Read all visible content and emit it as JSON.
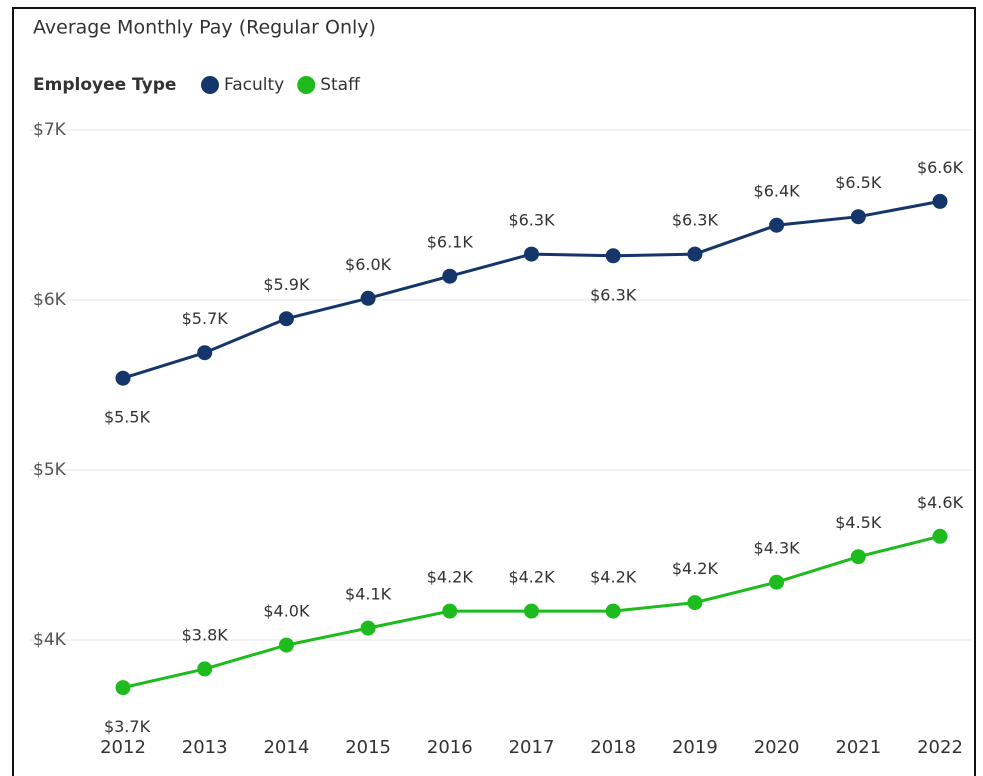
{
  "chart_data": {
    "type": "line",
    "title": "Average Monthly Pay (Regular Only)",
    "legend_title": "Employee Type",
    "categories": [
      "2012",
      "2013",
      "2014",
      "2015",
      "2016",
      "2017",
      "2018",
      "2019",
      "2020",
      "2021",
      "2022"
    ],
    "series": [
      {
        "name": "Faculty",
        "color": "#14366b",
        "values": [
          5540,
          5690,
          5890,
          6010,
          6140,
          6270,
          6260,
          6270,
          6440,
          6490,
          6580
        ],
        "value_labels": [
          "$5.5K",
          "$5.7K",
          "$5.9K",
          "$6.0K",
          "$6.1K",
          "$6.3K",
          "$6.3K",
          "$6.3K",
          "$6.4K",
          "$6.5K",
          "$6.6K"
        ]
      },
      {
        "name": "Staff",
        "color": "#1dbb1d",
        "values": [
          3720,
          3830,
          3970,
          4070,
          4170,
          4170,
          4170,
          4220,
          4340,
          4490,
          4610
        ],
        "value_labels": [
          "$3.7K",
          "$3.8K",
          "$4.0K",
          "$4.1K",
          "$4.2K",
          "$4.2K",
          "$4.2K",
          "$4.2K",
          "$4.3K",
          "$4.5K",
          "$4.6K"
        ]
      }
    ],
    "ylim": [
      3500,
      7100
    ],
    "yticks": [
      {
        "value": 4000,
        "label": "$4K"
      },
      {
        "value": 5000,
        "label": "$5K"
      },
      {
        "value": 6000,
        "label": "$6K"
      },
      {
        "value": 7000,
        "label": "$7K"
      }
    ],
    "grid": true
  }
}
